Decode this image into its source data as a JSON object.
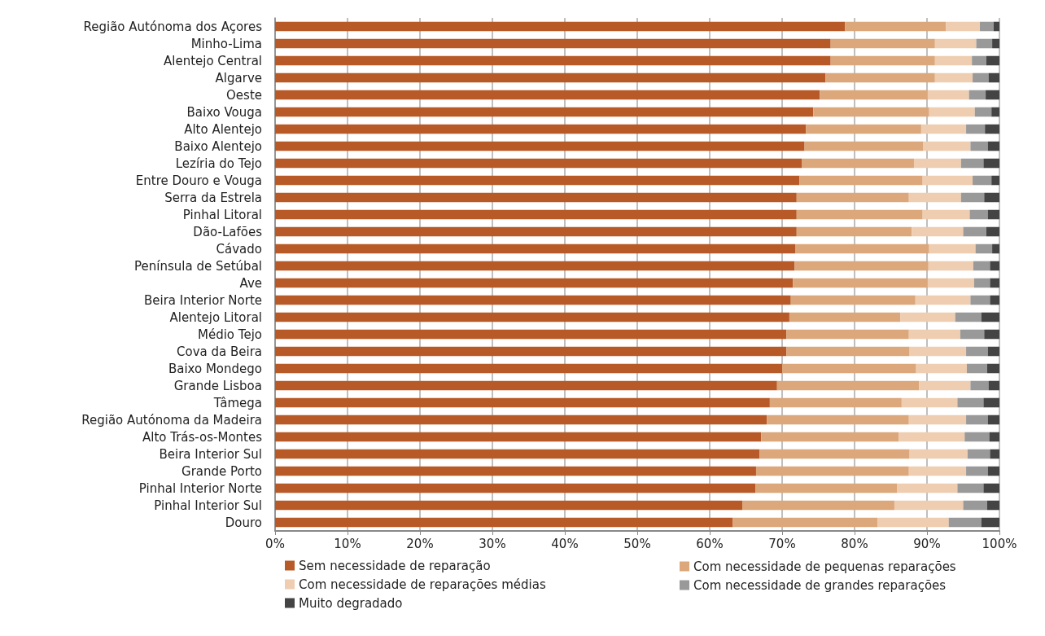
{
  "chart_data": {
    "type": "bar",
    "orientation": "horizontal",
    "stacked": true,
    "grid": "x",
    "legend": "bottom",
    "categories": [
      "Região Autónoma dos Açores",
      "Minho-Lima",
      "Alentejo Central",
      "Algarve",
      "Oeste",
      "Baixo Vouga",
      "Alto Alentejo",
      "Baixo Alentejo",
      "Lezíria do Tejo",
      "Entre Douro e Vouga",
      "Serra da Estrela",
      "Pinhal Litoral",
      "Dão-Lafões",
      "Cávado",
      "Península de Setúbal",
      "Ave",
      "Beira Interior Norte",
      "Alentejo Litoral",
      "Médio Tejo",
      "Cova da Beira",
      "Baixo Mondego",
      "Grande Lisboa",
      "Tâmega",
      "Região Autónoma da Madeira",
      "Alto Trás-os-Montes",
      "Beira Interior Sul",
      "Grande Porto",
      "Pinhal Interior Norte",
      "Pinhal Interior Sul",
      "Douro"
    ],
    "xlim": [
      0,
      100
    ],
    "xticks": [
      {
        "value": 0,
        "label": "0%"
      },
      {
        "value": 10,
        "label": "10%"
      },
      {
        "value": 20,
        "label": "20%"
      },
      {
        "value": 30,
        "label": "30%"
      },
      {
        "value": 40,
        "label": "40%"
      },
      {
        "value": 50,
        "label": "50%"
      },
      {
        "value": 60,
        "label": "60%"
      },
      {
        "value": 70,
        "label": "70%"
      },
      {
        "value": 80,
        "label": "80%"
      },
      {
        "value": 90,
        "label": "90%"
      },
      {
        "value": 100,
        "label": "100%"
      }
    ],
    "series": [
      {
        "name": "Sem necessidade de reparação",
        "color": "#b85a27",
        "values": [
          78.7,
          76.7,
          76.7,
          76.0,
          75.2,
          74.3,
          73.3,
          73.1,
          72.7,
          72.4,
          72.0,
          72.0,
          72.0,
          71.8,
          71.7,
          71.5,
          71.2,
          71.0,
          70.6,
          70.6,
          70.0,
          69.3,
          68.3,
          67.9,
          67.1,
          66.9,
          66.4,
          66.3,
          64.5,
          63.2
        ]
      },
      {
        "name": "Com necessidade de pequenas reparações",
        "color": "#dca77a",
        "values": [
          13.9,
          14.4,
          14.4,
          15.1,
          14.9,
          16.0,
          15.9,
          16.4,
          15.5,
          17.0,
          15.5,
          17.4,
          15.9,
          18.5,
          18.5,
          18.6,
          17.2,
          15.3,
          16.9,
          17.0,
          18.5,
          19.6,
          18.2,
          19.6,
          19.0,
          20.7,
          21.1,
          19.6,
          21.0,
          20.0
        ]
      },
      {
        "name": "Com necessidade de reparações médias",
        "color": "#efcdb0",
        "values": [
          4.7,
          5.7,
          5.1,
          5.2,
          5.7,
          6.3,
          6.2,
          6.5,
          6.5,
          6.9,
          7.2,
          6.5,
          7.1,
          6.4,
          6.2,
          6.4,
          7.6,
          7.6,
          7.1,
          7.8,
          7.0,
          7.1,
          7.7,
          7.9,
          9.1,
          8.0,
          7.9,
          8.3,
          9.5,
          9.8
        ]
      },
      {
        "name": "Com necessidade de grandes reparações",
        "color": "#999999",
        "values": [
          1.9,
          2.2,
          2.0,
          2.2,
          2.3,
          2.3,
          2.6,
          2.4,
          3.1,
          2.6,
          3.2,
          2.5,
          3.2,
          2.3,
          2.3,
          2.2,
          2.7,
          3.6,
          3.3,
          3.0,
          2.8,
          2.5,
          3.6,
          3.0,
          3.4,
          3.1,
          3.0,
          3.6,
          3.3,
          4.5
        ]
      },
      {
        "name": "Muito degradado",
        "color": "#444444",
        "values": [
          0.8,
          1.0,
          1.8,
          1.5,
          1.9,
          1.1,
          2.0,
          1.6,
          2.2,
          1.1,
          2.1,
          1.6,
          1.8,
          1.0,
          1.3,
          1.3,
          1.3,
          2.5,
          2.1,
          1.6,
          1.7,
          1.5,
          2.2,
          1.6,
          1.4,
          1.3,
          1.6,
          2.2,
          1.7,
          2.5
        ]
      }
    ]
  }
}
